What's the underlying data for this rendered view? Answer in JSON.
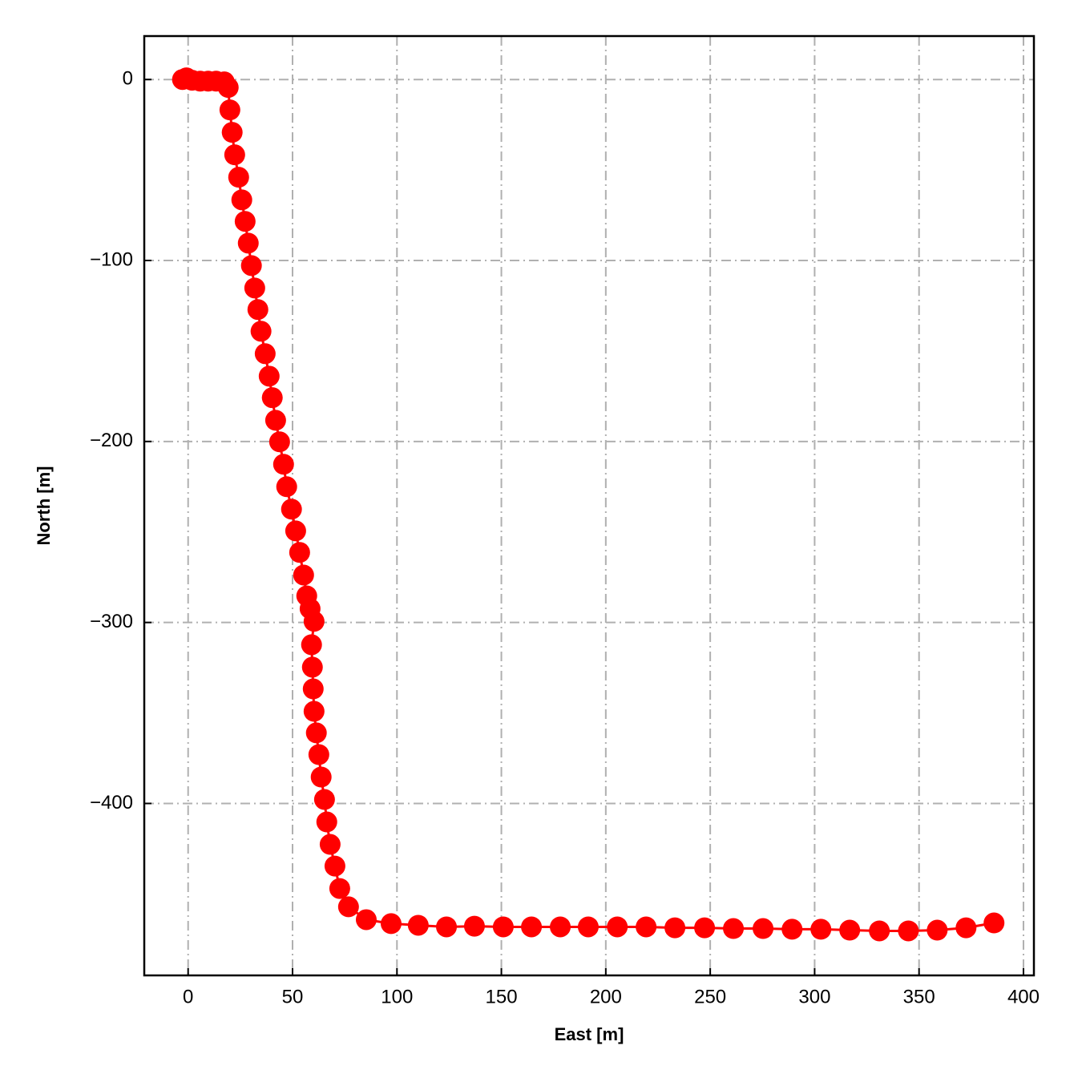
{
  "chart_data": {
    "type": "line",
    "xlabel": "East [m]",
    "ylabel": "North [m]",
    "x": [
      -2.7,
      -0.8,
      1.9,
      5.8,
      9.6,
      13.4,
      17.3,
      19.2,
      20.0,
      21.1,
      22.3,
      24.2,
      25.7,
      27.3,
      28.8,
      30.3,
      31.9,
      33.4,
      34.9,
      36.9,
      38.8,
      40.3,
      41.9,
      43.8,
      45.7,
      47.2,
      49.5,
      51.5,
      53.4,
      55.3,
      56.8,
      58.4,
      60.3,
      59.1,
      59.5,
      59.9,
      60.3,
      61.4,
      62.6,
      63.7,
      65.3,
      66.4,
      68.0,
      70.3,
      72.6,
      76.8,
      85.3,
      97.2,
      110.2,
      123.7,
      137.1,
      150.9,
      164.4,
      178.2,
      191.6,
      205.5,
      219.3,
      233.1,
      247.3,
      261.1,
      275.3,
      289.2,
      303.0,
      316.8,
      331.0,
      344.9,
      358.7,
      372.5,
      385.9
    ],
    "series": [
      {
        "color": "#ff0000",
        "values": [
          0,
          0.9,
          -0.4,
          -0.9,
          -0.9,
          -0.9,
          -1.3,
          -4.4,
          -16.8,
          -29.2,
          -41.6,
          -54.0,
          -66.5,
          -78.4,
          -90.4,
          -102.8,
          -115.2,
          -127.1,
          -139.1,
          -151.5,
          -163.9,
          -175.8,
          -188.3,
          -200.2,
          -212.6,
          -225.0,
          -237.4,
          -249.4,
          -261.3,
          -273.8,
          -285.3,
          -292.4,
          -299.4,
          -312.3,
          -324.7,
          -336.7,
          -349.1,
          -361.0,
          -373.0,
          -385.4,
          -397.8,
          -410.2,
          -422.6,
          -434.6,
          -447.0,
          -457.1,
          -464.2,
          -466.4,
          -467.3,
          -468.2,
          -467.8,
          -468.2,
          -468.2,
          -468.2,
          -468.2,
          -468.2,
          -468.2,
          -468.7,
          -468.7,
          -469.1,
          -469.1,
          -469.5,
          -469.5,
          -470.0,
          -470.4,
          -470.4,
          -470.0,
          -468.7,
          -466.0
        ]
      }
    ],
    "xlim": [
      -21,
      405
    ],
    "ylim": [
      -495,
      24
    ],
    "xticks": [
      0,
      50,
      100,
      150,
      200,
      250,
      300,
      350,
      400
    ],
    "yticks": [
      0,
      {
        "value": -100,
        "label": "−100"
      },
      {
        "value": -200,
        "label": "−200"
      },
      {
        "value": -300,
        "label": "−300"
      },
      {
        "value": -400,
        "label": "−400"
      }
    ],
    "grid": true
  }
}
